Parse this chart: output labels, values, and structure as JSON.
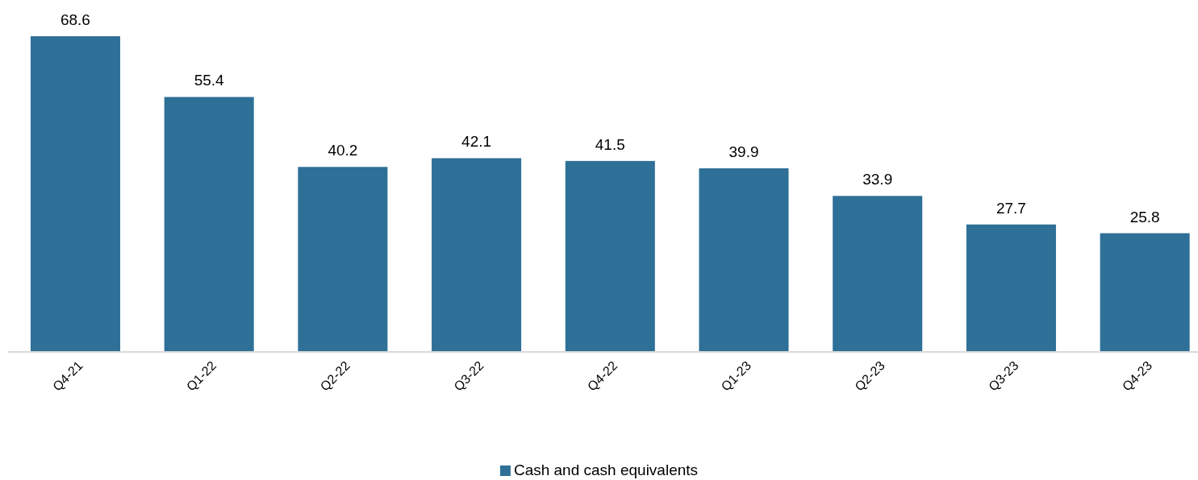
{
  "chart_data": {
    "type": "bar",
    "categories": [
      "Q4-21",
      "Q1-22",
      "Q2-22",
      "Q3-22",
      "Q4-22",
      "Q1-23",
      "Q2-23",
      "Q3-23",
      "Q4-23"
    ],
    "series": [
      {
        "name": "Cash and cash equivalents",
        "color": "#2e7097",
        "values": [
          68.6,
          55.4,
          40.2,
          42.1,
          41.5,
          39.9,
          33.9,
          27.7,
          25.8
        ]
      }
    ],
    "data_labels": true,
    "legend": "bottom"
  }
}
